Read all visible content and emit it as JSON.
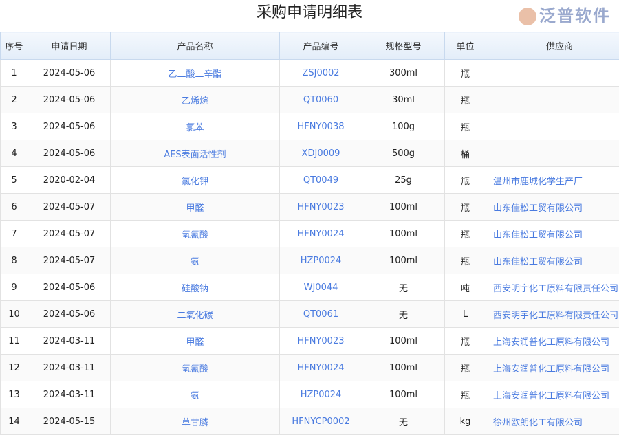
{
  "title": "采购申请明细表",
  "columns": [
    "序号",
    "申请日期",
    "产品名称",
    "产品编号",
    "规格型号",
    "单位",
    "供应商"
  ],
  "rows": [
    [
      "1",
      "2024-05-06",
      "乙二酸二辛酯",
      "ZSJ0002",
      "300ml",
      "瓶",
      ""
    ],
    [
      "2",
      "2024-05-06",
      "乙烯烷",
      "QT0060",
      "30ml",
      "瓶",
      ""
    ],
    [
      "3",
      "2024-05-06",
      "氯苯",
      "HFNY0038",
      "100g",
      "瓶",
      ""
    ],
    [
      "4",
      "2024-05-06",
      "AES表面活性剂",
      "XDJ0009",
      "500g",
      "桶",
      ""
    ],
    [
      "5",
      "2020-02-04",
      "氯化钾",
      "QT0049",
      "25g",
      "瓶",
      "温州市鹿城化学生产厂"
    ],
    [
      "6",
      "2024-05-07",
      "甲醛",
      "HFNY0023",
      "100ml",
      "瓶",
      "山东佳松工贸有限公司"
    ],
    [
      "7",
      "2024-05-07",
      "氢氰酸",
      "HFNY0024",
      "100ml",
      "瓶",
      "山东佳松工贸有限公司"
    ],
    [
      "8",
      "2024-05-07",
      "氨",
      "HZP0024",
      "100ml",
      "瓶",
      "山东佳松工贸有限公司"
    ],
    [
      "9",
      "2024-05-06",
      "硅酸钠",
      "WJ0044",
      "无",
      "吨",
      "西安明宇化工原料有限责任公司"
    ],
    [
      "10",
      "2024-05-06",
      "二氧化碳",
      "QT0061",
      "无",
      "L",
      "西安明宇化工原料有限责任公司"
    ],
    [
      "11",
      "2024-03-11",
      "甲醛",
      "HFNY0023",
      "100ml",
      "瓶",
      "上海安润普化工原料有限公司"
    ],
    [
      "12",
      "2024-03-11",
      "氢氰酸",
      "HFNY0024",
      "100ml",
      "瓶",
      "上海安润普化工原料有限公司"
    ],
    [
      "13",
      "2024-03-11",
      "氨",
      "HZP0024",
      "100ml",
      "瓶",
      "上海安润普化工原料有限公司"
    ],
    [
      "14",
      "2024-05-15",
      "草甘膦",
      "HFNYCP0002",
      "无",
      "kg",
      "徐州欧朗化工有限公司"
    ]
  ],
  "watermark": "泛普软件"
}
